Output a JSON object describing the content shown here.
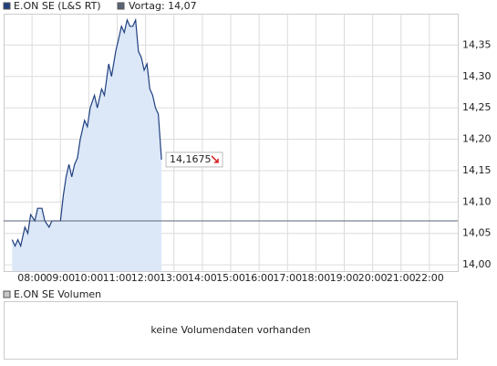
{
  "chart_data": {
    "type": "line",
    "series": [
      {
        "name": "E.ON SE (L&S RT)",
        "color": "#1f3f7f",
        "fill": "#dce8f8",
        "x": [
          7.3,
          7.4,
          7.5,
          7.6,
          7.75,
          7.85,
          7.95,
          8.1,
          8.2,
          8.35,
          8.45,
          8.6,
          8.7,
          8.85,
          9.0,
          9.1,
          9.2,
          9.3,
          9.4,
          9.5,
          9.6,
          9.7,
          9.85,
          9.95,
          10.05,
          10.2,
          10.3,
          10.45,
          10.55,
          10.7,
          10.8,
          10.95,
          11.05,
          11.15,
          11.25,
          11.35,
          11.45,
          11.55,
          11.65,
          11.75,
          11.85,
          11.95,
          12.05,
          12.15,
          12.25,
          12.35,
          12.45,
          12.56
        ],
        "values": [
          14.04,
          14.03,
          14.04,
          14.03,
          14.06,
          14.05,
          14.08,
          14.07,
          14.09,
          14.09,
          14.07,
          14.06,
          14.07,
          14.07,
          14.07,
          14.11,
          14.14,
          14.16,
          14.14,
          14.16,
          14.17,
          14.2,
          14.23,
          14.22,
          14.25,
          14.27,
          14.25,
          14.28,
          14.27,
          14.32,
          14.3,
          14.34,
          14.36,
          14.38,
          14.37,
          14.39,
          14.38,
          14.38,
          14.39,
          14.34,
          14.33,
          14.31,
          14.32,
          14.28,
          14.27,
          14.25,
          14.24,
          14.1675
        ]
      }
    ],
    "reference": {
      "name": "Vortag: 14,07",
      "value": 14.07,
      "color": "#5a6478"
    },
    "annotation": {
      "value": 14.1675,
      "label": "14,1675"
    },
    "xlim": [
      7,
      23
    ],
    "xticks": [
      {
        "value": 8,
        "label": "08:00"
      },
      {
        "value": 9,
        "label": "09:00"
      },
      {
        "value": 10,
        "label": "10:00"
      },
      {
        "value": 11,
        "label": "11:00"
      },
      {
        "value": 12,
        "label": "12:00"
      },
      {
        "value": 13,
        "label": "13:00"
      },
      {
        "value": 14,
        "label": "14:00"
      },
      {
        "value": 15,
        "label": "15:00"
      },
      {
        "value": 16,
        "label": "16:00"
      },
      {
        "value": 17,
        "label": "17:00"
      },
      {
        "value": 18,
        "label": "18:00"
      },
      {
        "value": 19,
        "label": "19:00"
      },
      {
        "value": 20,
        "label": "20:00"
      },
      {
        "value": 21,
        "label": "21:00"
      },
      {
        "value": 22,
        "label": "22:00"
      }
    ],
    "ylim": [
      13.99,
      14.4
    ],
    "yticks": [
      {
        "value": 14.0,
        "label": "14,00"
      },
      {
        "value": 14.05,
        "label": "14,05"
      },
      {
        "value": 14.1,
        "label": "14,10"
      },
      {
        "value": 14.15,
        "label": "14,15"
      },
      {
        "value": 14.2,
        "label": "14,20"
      },
      {
        "value": 14.25,
        "label": "14,25"
      },
      {
        "value": 14.3,
        "label": "14,30"
      },
      {
        "value": 14.35,
        "label": "14,35"
      }
    ],
    "grid": true,
    "volume": {
      "title": "E.ON SE Volumen",
      "message": "keine Volumendaten vorhanden",
      "color": "#c8c8c8"
    }
  }
}
